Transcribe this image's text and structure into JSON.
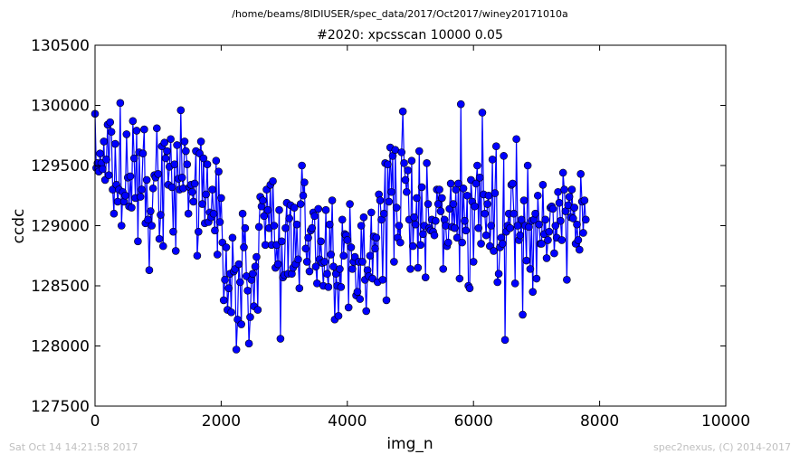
{
  "page": {
    "suptitle": "/home/beams/8IDIUSER/spec_data/2017/Oct2017/winey20171010a",
    "footer_left": "Sat Oct 14 14:21:58 2017",
    "footer_right": "spec2nexus, (C) 2014-2017"
  },
  "chart_data": {
    "type": "line",
    "title": "#2020: xpcsscan 10000 0.05",
    "xlabel": "img_n",
    "ylabel": "ccdc",
    "xlim": [
      0,
      10000
    ],
    "ylim": [
      127500,
      130500
    ],
    "xticks": [
      0,
      2000,
      4000,
      6000,
      8000,
      10000
    ],
    "xtick_labels": [
      "0",
      "2000",
      "4000",
      "6000",
      "8000",
      "10000"
    ],
    "yticks": [
      127500,
      128000,
      128500,
      129000,
      129500,
      130000,
      130500
    ],
    "ytick_labels": [
      "127500",
      "128000",
      "128500",
      "129000",
      "129500",
      "130000",
      "130500"
    ],
    "grid": false,
    "legend": "none",
    "marker": "circle",
    "color": "#0000ff",
    "series": [
      {
        "x_start": 0,
        "x_step": 20,
        "values": [
          129930,
          129480,
          129520,
          129450,
          129600,
          129520,
          129470,
          129700,
          129380,
          129550,
          129840,
          129420,
          129860,
          129780,
          129300,
          129100,
          129680,
          129340,
          129200,
          129300,
          130020,
          129000,
          129280,
          129200,
          129250,
          129760,
          129400,
          129160,
          129410,
          129150,
          129870,
          129560,
          129230,
          129790,
          128870,
          129610,
          129240,
          129300,
          129600,
          129800,
          129020,
          129380,
          129050,
          128630,
          129120,
          129000,
          129310,
          129420,
          129400,
          129810,
          129430,
          128890,
          129090,
          129660,
          128830,
          129690,
          129560,
          129620,
          129340,
          129490,
          129720,
          129320,
          128950,
          129510,
          128790,
          129670,
          129390,
          129300,
          129960,
          129400,
          129310,
          129700,
          129620,
          129510,
          129100,
          129320,
          129340,
          129280,
          129200,
          129350,
          129620,
          128750,
          128950,
          129600,
          129700,
          129180,
          129560,
          129020,
          129260,
          129510,
          129030,
          129110,
          129070,
          129300,
          129100,
          128960,
          129540,
          128760,
          129450,
          129030,
          129230,
          128860,
          128380,
          128550,
          128820,
          128300,
          128480,
          128600,
          128280,
          128900,
          128620,
          128640,
          127970,
          128220,
          128680,
          128530,
          128180,
          129100,
          128820,
          128980,
          128580,
          128460,
          128020,
          128240,
          128550,
          128600,
          128330,
          128660,
          128740,
          128300,
          128990,
          129240,
          129160,
          129210,
          129080,
          128840,
          129300,
          129130,
          128980,
          129340,
          128840,
          129370,
          129000,
          128650,
          128840,
          128680,
          129130,
          128060,
          128870,
          128570,
          128590,
          128980,
          129190,
          128600,
          129060,
          129170,
          128600,
          128650,
          129150,
          128680,
          129010,
          128720,
          128480,
          129180,
          129500,
          129250,
          129360,
          128810,
          128700,
          128900,
          128620,
          128960,
          128980,
          129110,
          129080,
          128660,
          128520,
          129140,
          128720,
          128870,
          128690,
          128500,
          128700,
          129130,
          128600,
          128490,
          129010,
          128760,
          129210,
          128660,
          128220,
          128600,
          128500,
          128250,
          128640,
          128490,
          129050,
          128750,
          128930,
          128920,
          128880,
          128320,
          129180,
          128820,
          128640,
          128700,
          128740,
          128420,
          128450,
          128700,
          128390,
          129000,
          128700,
          129070,
          128550,
          128290,
          128630,
          128580,
          128750,
          129110,
          128560,
          128910,
          128810,
          128900,
          128530,
          129260,
          129210,
          129050,
          128550,
          129100,
          129520,
          128380,
          129510,
          129200,
          129650,
          129280,
          129580,
          128700,
          129630,
          129150,
          128900,
          129000,
          128860,
          129610,
          129950,
          129520,
          129380,
          129280,
          129460,
          129050,
          128640,
          129540,
          128830,
          129070,
          129010,
          129230,
          128650,
          129620,
          128840,
          129320,
          128930,
          129000,
          128570,
          129520,
          129180,
          128980,
          128960,
          129050,
          128950,
          128920,
          129040,
          129300,
          129180,
          129300,
          129120,
          129230,
          128640,
          129050,
          129000,
          128830,
          128860,
          129140,
          129350,
          128990,
          129180,
          128980,
          129300,
          128900,
          129350,
          128560,
          130010,
          128860,
          129310,
          129040,
          128960,
          129250,
          128500,
          128480,
          129380,
          129200,
          128700,
          129160,
          129350,
          129500,
          128980,
          129400,
          128850,
          129940,
          129260,
          129100,
          128920,
          129180,
          129250,
          128830,
          129000,
          129550,
          128790,
          129270,
          129660,
          128530,
          128600,
          128820,
          128900,
          128850,
          129580,
          128050,
          128950,
          129000,
          129100,
          128980,
          129340,
          129350,
          129100,
          128520,
          129720,
          129000,
          128880,
          128920,
          129050,
          128260,
          129210,
          129000,
          128710,
          129500,
          128990,
          128640,
          129040,
          128450,
          129050,
          129100,
          128560,
          129250,
          129010,
          128850,
          128850,
          129340,
          128930,
          129050,
          128730,
          128880,
          128950,
          129150,
          129160,
          129140,
          128770,
          129000,
          128900,
          129280,
          129190,
          129040,
          128880,
          129440,
          129300,
          129120,
          128550,
          129170,
          129240,
          129070,
          129300,
          129060,
          129150,
          128850,
          129010,
          128880,
          128800,
          129430,
          129200,
          128940,
          129210,
          129050
        ]
      }
    ]
  }
}
